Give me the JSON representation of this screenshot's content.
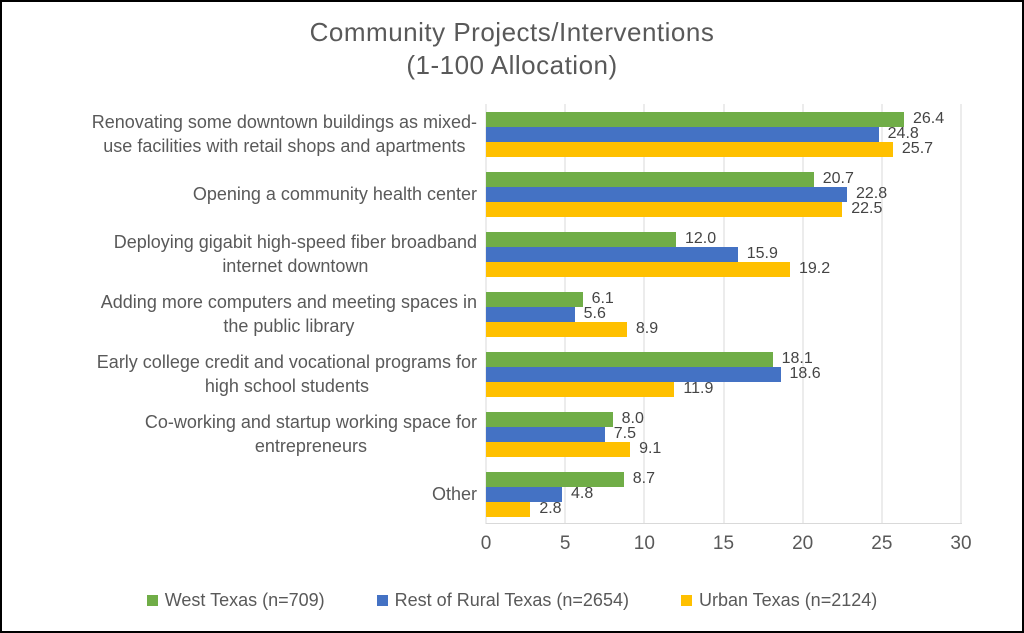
{
  "chart_data": {
    "type": "bar",
    "orientation": "horizontal",
    "title": "Community Projects/Interventions\n(1-100 Allocation)",
    "categories": [
      "Renovating some downtown buildings as mixed-\nuse facilities with retail shops and apartments",
      "Opening a community health center",
      "Deploying gigabit high-speed fiber broadband\ninternet downtown",
      "Adding more computers and meeting spaces in\nthe public library",
      "Early college credit and vocational programs for\nhigh school students",
      "Co-working and startup working space for\nentrepreneurs",
      "Other"
    ],
    "series": [
      {
        "name": "West Texas (n=709)",
        "color": "#70AD47",
        "values": [
          26.4,
          20.7,
          12.0,
          6.1,
          18.1,
          8.0,
          8.7
        ]
      },
      {
        "name": "Rest of Rural Texas (n=2654)",
        "color": "#4472C4",
        "values": [
          24.8,
          22.8,
          15.9,
          5.6,
          18.6,
          7.5,
          4.8
        ]
      },
      {
        "name": "Urban Texas (n=2124)",
        "color": "#FFC000",
        "values": [
          25.7,
          22.5,
          19.2,
          8.9,
          11.9,
          9.1,
          2.8
        ]
      }
    ],
    "xlim": [
      0,
      30
    ],
    "x_ticks": [
      0,
      5,
      10,
      15,
      20,
      25,
      30
    ],
    "grid": "vertical-gridlines-on",
    "data_labels": "one-decimal",
    "legend_position": "bottom"
  },
  "colors": {
    "text": "#595959",
    "data_label_text": "#444444",
    "gridline": "#d9d9d9",
    "frame_border": "#000000",
    "background": "#ffffff"
  }
}
